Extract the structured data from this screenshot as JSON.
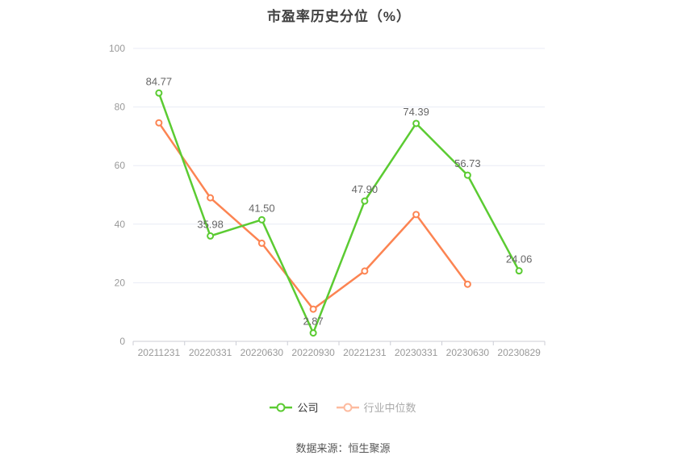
{
  "title": "市盈率历史分位（%）",
  "source_note": "数据来源：恒生聚源",
  "colors": {
    "company_line": "#5BCB32",
    "industry_line": "#FC8452",
    "grid_line": "#E8EBF5",
    "axis_line": "#CCCED6",
    "tick_label": "#999999",
    "data_label": "#666666",
    "title_text": "#404040",
    "legend_active_text": "#333333",
    "legend_dimmed_text": "#AAAAAA"
  },
  "legend": [
    {
      "label": "公司",
      "color": "#5BCB32",
      "dimmed": false
    },
    {
      "label": "行业中位数",
      "color": "#FC8452",
      "dimmed": true
    }
  ],
  "chart_data": {
    "type": "line",
    "title": "市盈率历史分位（%）",
    "categories": [
      "20211231",
      "20220331",
      "20220630",
      "20220930",
      "20221231",
      "20230331",
      "20230630",
      "20230829"
    ],
    "series": [
      {
        "name": "公司",
        "color": "#5BCB32",
        "values": [
          84.77,
          35.98,
          41.5,
          2.87,
          47.9,
          74.39,
          56.73,
          24.06
        ],
        "labels_shown": true,
        "label_format_decimals": 2
      },
      {
        "name": "行业中位数",
        "color": "#FC8452",
        "values": [
          74.6,
          49.0,
          33.5,
          11.0,
          24.0,
          43.3,
          19.5,
          null
        ],
        "labels_shown": false
      }
    ],
    "xlabel": "",
    "ylabel": "",
    "ylim": [
      0,
      100
    ],
    "yticks": [
      0,
      20,
      40,
      60,
      80,
      100
    ],
    "grid": true,
    "legend_position": "bottom",
    "marker": "hollow-circle"
  }
}
